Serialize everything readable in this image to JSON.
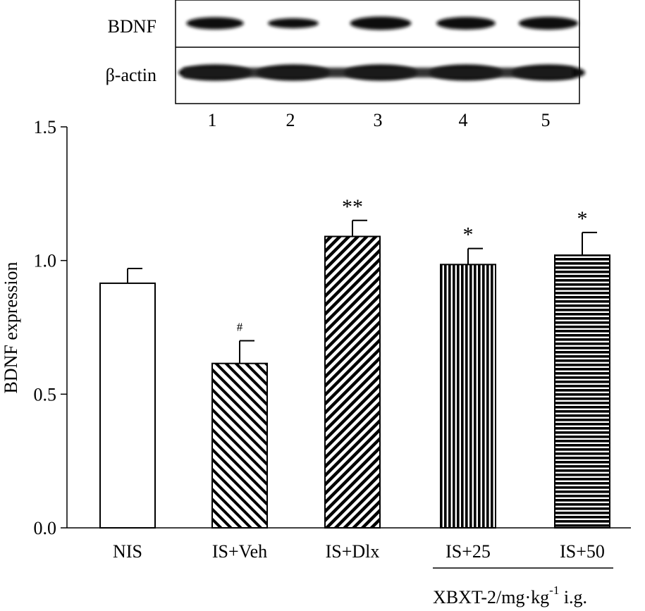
{
  "blot": {
    "rows": [
      {
        "label": "BDNF",
        "bands": [
          {
            "lane": 1,
            "intensity": 0.92
          },
          {
            "lane": 2,
            "intensity": 0.62
          },
          {
            "lane": 3,
            "intensity": 1.09
          },
          {
            "lane": 4,
            "intensity": 0.99
          },
          {
            "lane": 5,
            "intensity": 1.02
          }
        ]
      },
      {
        "label": "β-actin",
        "bands": [
          {
            "lane": 1,
            "intensity": 1.0
          },
          {
            "lane": 2,
            "intensity": 1.0
          },
          {
            "lane": 3,
            "intensity": 1.0
          },
          {
            "lane": 4,
            "intensity": 1.0
          },
          {
            "lane": 5,
            "intensity": 1.0
          }
        ]
      }
    ],
    "lane_labels": [
      "1",
      "2",
      "3",
      "4",
      "5"
    ]
  },
  "chart_data": {
    "type": "bar",
    "title": "",
    "xlabel": "",
    "ylabel": "BDNF expression",
    "ylim": [
      0,
      1.5
    ],
    "yticks": [
      "0.0",
      "0.5",
      "1.0",
      "1.5"
    ],
    "categories": [
      "NIS",
      "IS+Veh",
      "IS+Dlx",
      "IS+25",
      "IS+50"
    ],
    "values": [
      0.915,
      0.615,
      1.09,
      0.985,
      1.02
    ],
    "errors": [
      0.055,
      0.085,
      0.06,
      0.06,
      0.085
    ],
    "significance": [
      "",
      "#",
      "**",
      "*",
      "*"
    ],
    "patterns": [
      "empty",
      "diagonal-down",
      "diagonal-up",
      "vertical",
      "horizontal"
    ],
    "group_bracket": {
      "categories": [
        "IS+25",
        "IS+50"
      ],
      "label_main": "XBXT-2/mg·kg",
      "label_sup": "-1",
      "label_tail": " i.g."
    }
  }
}
